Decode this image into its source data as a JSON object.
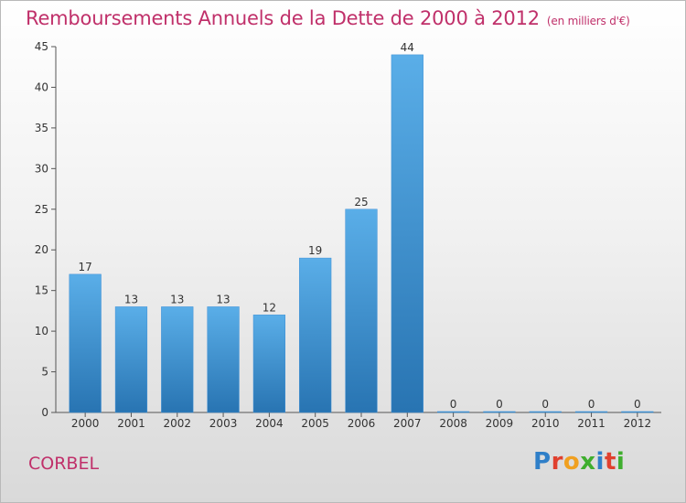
{
  "header": {
    "title": "Remboursements Annuels de la Dette de 2000 à 2012",
    "subtitle": "(en milliers d'€)"
  },
  "footer": {
    "commune": "CORBEL",
    "logo_letters": [
      "P",
      "r",
      "o",
      "x",
      "i",
      "t",
      "i"
    ],
    "logo_colors": [
      "#2f7fc8",
      "#e0402e",
      "#f0a020",
      "#3fae2e",
      "#2f7fc8",
      "#e0402e",
      "#3fae2e"
    ]
  },
  "chart_data": {
    "type": "bar",
    "title": "Remboursements Annuels de la Dette de 2000 à 2012",
    "subtitle": "(en milliers d'€)",
    "categories": [
      "2000",
      "2001",
      "2002",
      "2003",
      "2004",
      "2005",
      "2006",
      "2007",
      "2008",
      "2009",
      "2010",
      "2011",
      "2012"
    ],
    "values": [
      17,
      13,
      13,
      13,
      12,
      19,
      25,
      44,
      0,
      0,
      0,
      0,
      0
    ],
    "ylim": [
      0,
      45
    ],
    "yticks": [
      0,
      5,
      10,
      15,
      20,
      25,
      30,
      35,
      40,
      45
    ],
    "xlabel": "",
    "ylabel": "",
    "grid": false,
    "colors": {
      "bar_light": "#5aaee8",
      "bar_dark": "#2874b2"
    }
  }
}
